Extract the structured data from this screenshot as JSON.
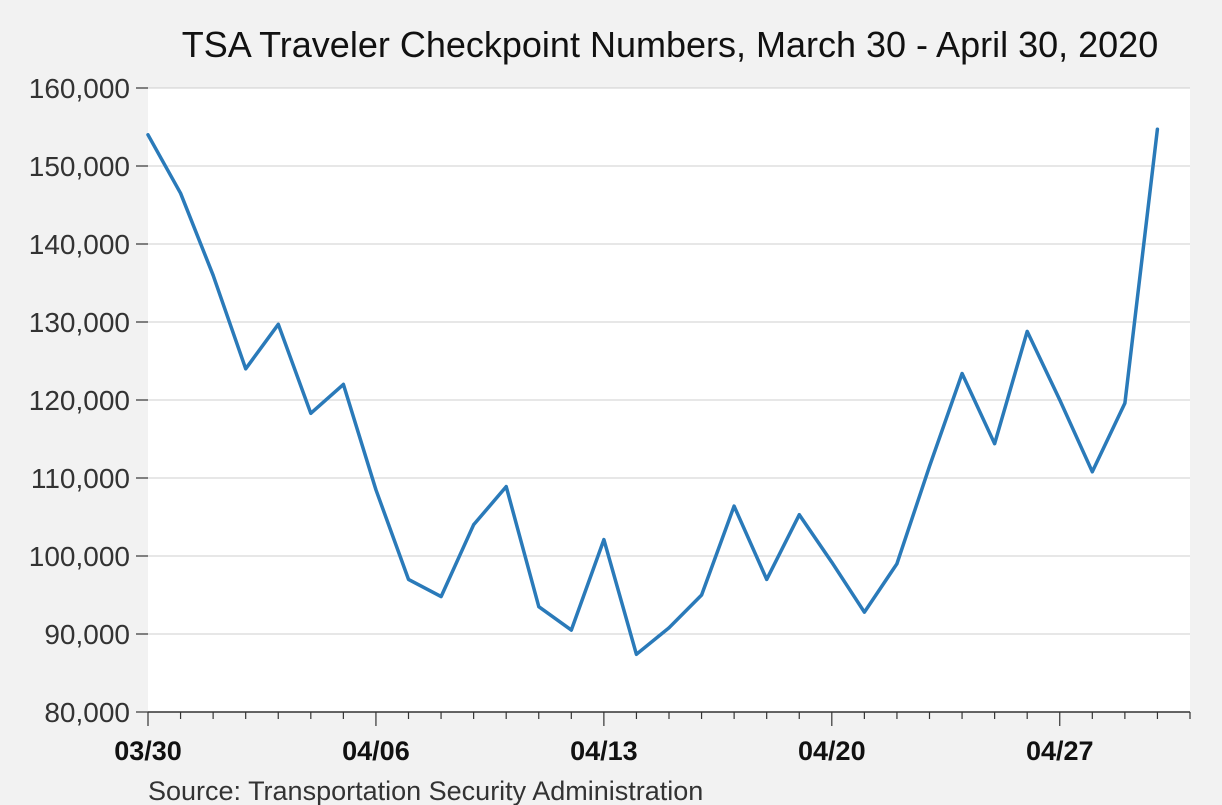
{
  "chart_data": {
    "type": "line",
    "title": "TSA Traveler Checkpoint Numbers, March 30 - April 30, 2020",
    "source": "Source: Transportation Security Administration",
    "xlabel": "",
    "ylabel": "",
    "ylim": [
      80000,
      160000
    ],
    "yticks": [
      80000,
      90000,
      100000,
      110000,
      120000,
      130000,
      140000,
      150000,
      160000
    ],
    "ytick_labels": [
      "80,000",
      "90,000",
      "100,000",
      "110,000",
      "120,000",
      "130,000",
      "140,000",
      "150,000",
      "160,000"
    ],
    "xtick_labels": [
      {
        "label": "03/30",
        "index": 0
      },
      {
        "label": "04/06",
        "index": 7
      },
      {
        "label": "04/13",
        "index": 14
      },
      {
        "label": "04/20",
        "index": 21
      },
      {
        "label": "04/27",
        "index": 28
      }
    ],
    "grid": true,
    "line_color": "#2a7ab9",
    "series": [
      {
        "values": [
          154000,
          146500,
          136000,
          124000,
          129700,
          118300,
          122000,
          108500,
          97000,
          94800,
          104000,
          108900,
          93500,
          90500,
          102100,
          87400,
          90800,
          95000,
          106400,
          97000,
          105300,
          99200,
          92800,
          99000,
          111500,
          123400,
          114400,
          128800,
          120000,
          110800,
          119600,
          154700
        ]
      }
    ]
  }
}
